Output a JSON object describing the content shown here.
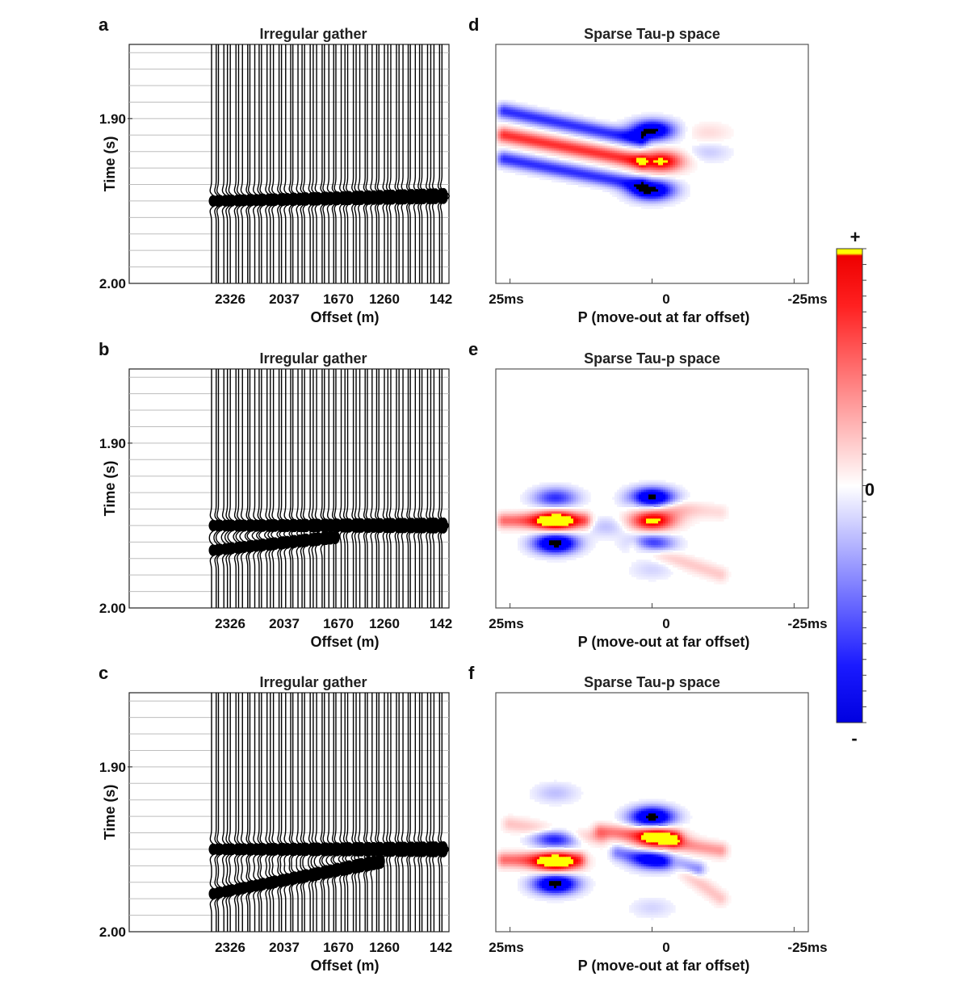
{
  "chart_data": [
    {
      "type": "seismic-gather",
      "panel": "a",
      "title": "Irregular gather",
      "xlabel": "Offset (m)",
      "ylabel": "Time (s)",
      "xticks": [
        "2326",
        "2037",
        "1670",
        "1260",
        "142"
      ],
      "yticks": [
        "1.90",
        "2.00"
      ],
      "event_time_far_s": 1.95,
      "event_time_near_s": 1.947,
      "second_event": false
    },
    {
      "type": "seismic-gather",
      "panel": "b",
      "title": "Irregular gather",
      "xlabel": "Offset (m)",
      "ylabel": "Time (s)",
      "xticks": [
        "2326",
        "2037",
        "1670",
        "1260",
        "142"
      ],
      "yticks": [
        "1.90",
        "2.00"
      ],
      "event_time_far_s": 1.95,
      "event_time_near_s": 1.95,
      "second_event": true,
      "second_event_time_far_s": 1.965,
      "second_event_time_near_s": 1.95
    },
    {
      "type": "seismic-gather",
      "panel": "c",
      "title": "Irregular gather",
      "xlabel": "Offset (m)",
      "ylabel": "Time (s)",
      "xticks": [
        "2326",
        "2037",
        "1670",
        "1260",
        "142"
      ],
      "yticks": [
        "1.90",
        "2.00"
      ],
      "event_time_far_s": 1.95,
      "event_time_near_s": 1.95,
      "second_event": true,
      "second_event_time_far_s": 1.977,
      "second_event_time_near_s": 1.95
    },
    {
      "type": "heatmap",
      "panel": "d",
      "title": "Sparse Tau-p space",
      "xlabel": "P (move-out at far offset)",
      "xticks": [
        "25ms",
        "0",
        "-25ms"
      ],
      "blobs": [
        {
          "p_ms": -1.5,
          "t_rel": 0.49,
          "amp": 1.0
        },
        {
          "p_ms": 0,
          "t_rel": 0.36,
          "amp": -0.9
        },
        {
          "p_ms": 0,
          "t_rel": 0.61,
          "amp": -0.9
        },
        {
          "p_ms": -10,
          "t_rel": 0.37,
          "amp": 0.12
        },
        {
          "p_ms": -10,
          "t_rel": 0.45,
          "amp": -0.12
        }
      ],
      "streaks": [
        {
          "p_from_ms": 26,
          "t_from_rel": 0.38,
          "p_to_ms": 2,
          "t_to_rel": 0.49,
          "amp": 0.7
        },
        {
          "p_from_ms": 26,
          "t_from_rel": 0.28,
          "p_to_ms": 2,
          "t_to_rel": 0.4,
          "amp": -0.5
        },
        {
          "p_from_ms": 26,
          "t_from_rel": 0.48,
          "p_to_ms": 2,
          "t_to_rel": 0.59,
          "amp": -0.5
        }
      ]
    },
    {
      "type": "heatmap",
      "panel": "e",
      "title": "Sparse Tau-p space",
      "xlabel": "P (move-out at far offset)",
      "xticks": [
        "25ms",
        "0",
        "-25ms"
      ],
      "blobs": [
        {
          "p_ms": 17,
          "t_rel": 0.635,
          "amp": 1.0
        },
        {
          "p_ms": 17,
          "t_rel": 0.54,
          "amp": -0.5
        },
        {
          "p_ms": 17,
          "t_rel": 0.73,
          "amp": -0.95
        },
        {
          "p_ms": 0,
          "t_rel": 0.635,
          "amp": 1.0
        },
        {
          "p_ms": 0,
          "t_rel": 0.54,
          "amp": -0.95
        },
        {
          "p_ms": 0,
          "t_rel": 0.73,
          "amp": -0.5
        },
        {
          "p_ms": -4,
          "t_rel": 0.6,
          "amp": 0.15
        },
        {
          "p_ms": 8,
          "t_rel": 0.66,
          "amp": -0.15
        },
        {
          "p_ms": 0,
          "t_rel": 0.84,
          "amp": -0.1
        }
      ],
      "streaks": [
        {
          "p_from_ms": 26,
          "t_from_rel": 0.635,
          "p_to_ms": 12,
          "t_to_rel": 0.635,
          "amp": 0.5
        },
        {
          "p_from_ms": 3,
          "t_from_rel": 0.74,
          "p_to_ms": -12,
          "t_to_rel": 0.86,
          "amp": 0.18
        },
        {
          "p_from_ms": 3,
          "t_from_rel": 0.56,
          "p_to_ms": -12,
          "t_to_rel": 0.6,
          "amp": 0.12
        }
      ]
    },
    {
      "type": "heatmap",
      "panel": "f",
      "title": "Sparse Tau-p space",
      "xlabel": "P (move-out at far offset)",
      "xticks": [
        "25ms",
        "0",
        "-25ms"
      ],
      "blobs": [
        {
          "p_ms": 17,
          "t_rel": 0.71,
          "amp": 1.0
        },
        {
          "p_ms": 17,
          "t_rel": 0.61,
          "amp": -0.6
        },
        {
          "p_ms": 17,
          "t_rel": 0.8,
          "amp": -0.95
        },
        {
          "p_ms": -1,
          "t_rel": 0.61,
          "amp": 1.0
        },
        {
          "p_ms": 0,
          "t_rel": 0.52,
          "amp": -0.95
        },
        {
          "p_ms": 0,
          "t_rel": 0.7,
          "amp": -0.5
        },
        {
          "p_ms": 17,
          "t_rel": 0.42,
          "amp": -0.15
        },
        {
          "p_ms": 0,
          "t_rel": 0.9,
          "amp": -0.1
        }
      ],
      "streaks": [
        {
          "p_from_ms": 26,
          "t_from_rel": 0.7,
          "p_to_ms": 13,
          "t_to_rel": 0.7,
          "amp": 0.5
        },
        {
          "p_from_ms": 25,
          "t_from_rel": 0.55,
          "p_to_ms": 9,
          "t_to_rel": 0.61,
          "amp": 0.2
        },
        {
          "p_from_ms": 9,
          "t_from_rel": 0.58,
          "p_to_ms": -4,
          "t_to_rel": 0.61,
          "amp": 0.45
        },
        {
          "p_from_ms": -4,
          "t_from_rel": 0.63,
          "p_to_ms": -12,
          "t_to_rel": 0.66,
          "amp": 0.35
        },
        {
          "p_from_ms": 6,
          "t_from_rel": 0.67,
          "p_to_ms": -8,
          "t_to_rel": 0.74,
          "amp": -0.3
        },
        {
          "p_from_ms": -4,
          "t_from_rel": 0.72,
          "p_to_ms": -12,
          "t_to_rel": 0.86,
          "amp": 0.2
        }
      ]
    }
  ],
  "colorbar": {
    "top_label": "+",
    "mid_label": "0",
    "bottom_label": "-",
    "colors": [
      "#0000ff",
      "#ffffff",
      "#ff0000",
      "#ffff00"
    ]
  }
}
